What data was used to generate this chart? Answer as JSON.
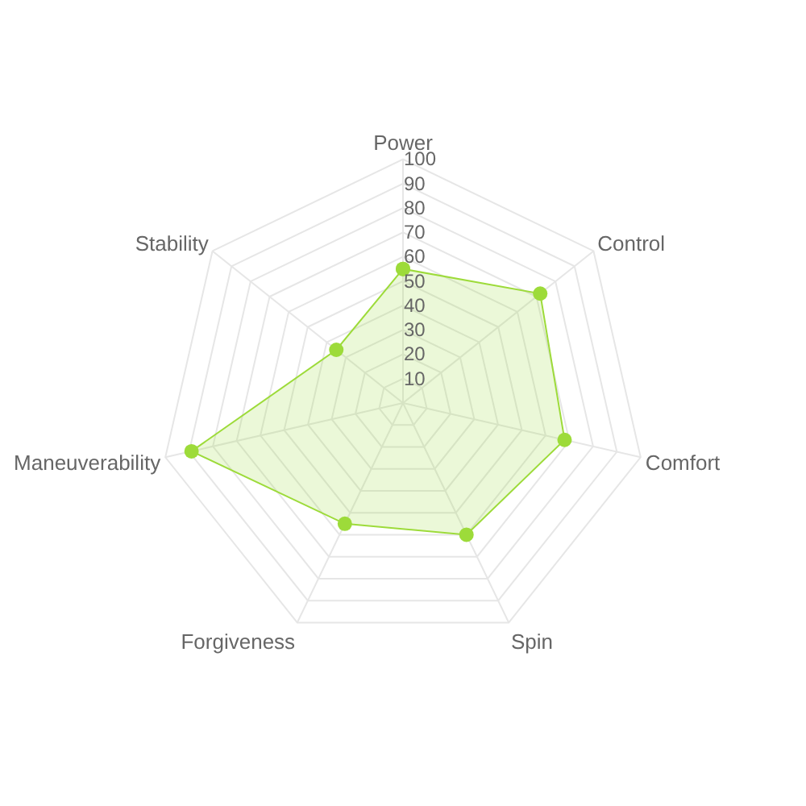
{
  "chart_data": {
    "type": "radar",
    "categories": [
      "Power",
      "Control",
      "Comfort",
      "Spin",
      "Forgiveness",
      "Maneuverability",
      "Stability"
    ],
    "series": [
      {
        "color": "#9ddb3a",
        "values": [
          55,
          72,
          68,
          60,
          55,
          89,
          35
        ]
      }
    ],
    "ylim": [
      0,
      100
    ],
    "yticks": [
      10,
      20,
      30,
      40,
      50,
      60,
      70,
      80,
      90,
      100
    ],
    "marker": "circle",
    "line_style": "solid"
  }
}
